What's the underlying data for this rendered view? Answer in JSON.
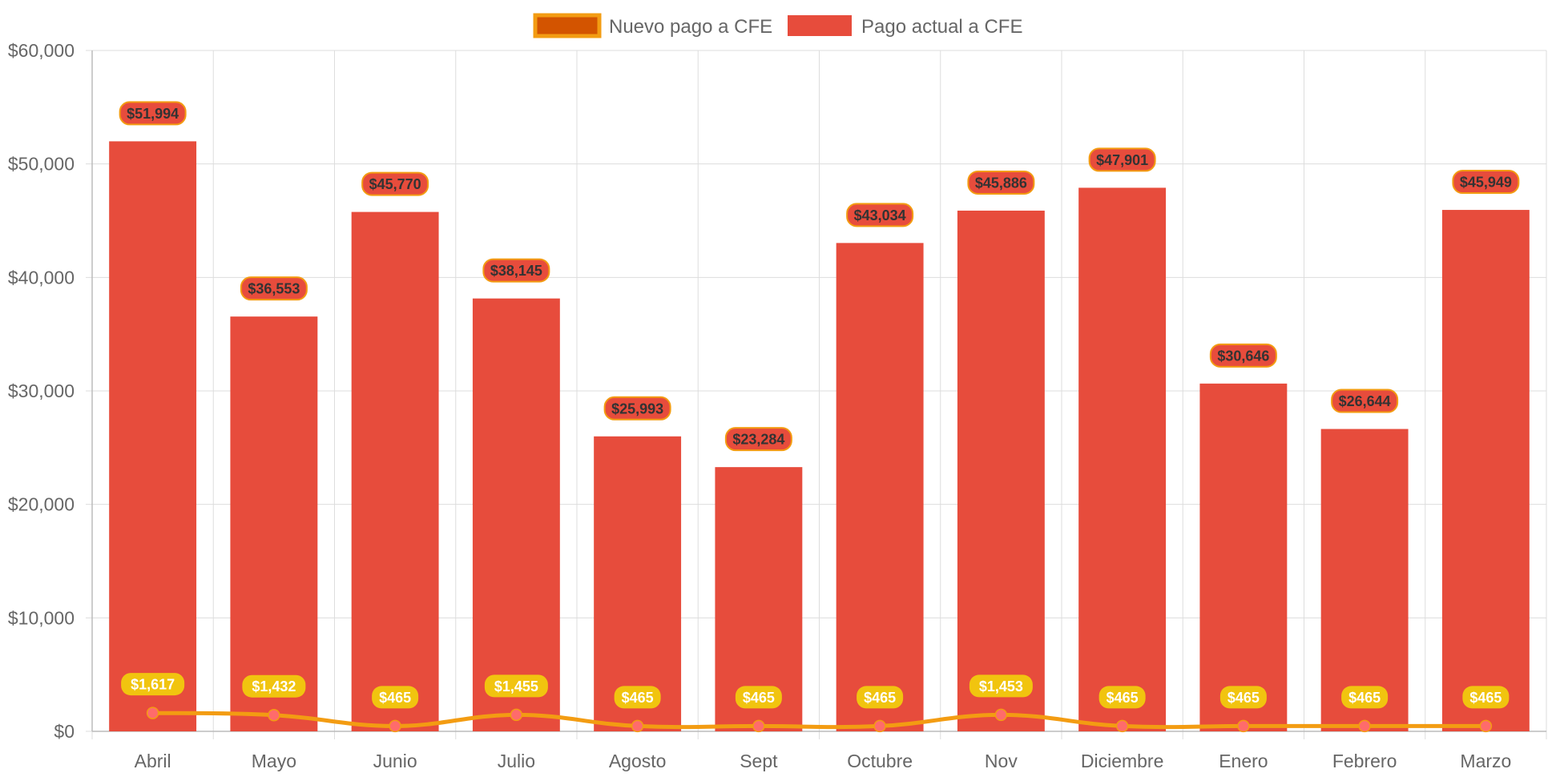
{
  "colors": {
    "bar_fill": "#e74c3c",
    "line_stroke": "#f39c12",
    "line_legend_fill": "#d35400",
    "point_fill": "#ff6b6b",
    "line_label_bg": "#f1c40f",
    "grid": "#dddddd",
    "text": "#666666"
  },
  "chart_data": {
    "type": "bar",
    "title": "",
    "xlabel": "",
    "ylabel": "",
    "ylim": [
      0,
      60000
    ],
    "y_ticks": [
      0,
      10000,
      20000,
      30000,
      40000,
      50000,
      60000
    ],
    "y_tick_labels": [
      "$0",
      "$10,000",
      "$20,000",
      "$30,000",
      "$40,000",
      "$50,000",
      "$60,000"
    ],
    "categories": [
      "Abril",
      "Mayo",
      "Junio",
      "Julio",
      "Agosto",
      "Sept",
      "Octubre",
      "Nov",
      "Diciembre",
      "Enero",
      "Febrero",
      "Marzo"
    ],
    "legend_position": "top-center",
    "grid": true,
    "series": [
      {
        "name": "Nuevo pago a CFE",
        "type": "line",
        "values": [
          1617,
          1432,
          465,
          1455,
          465,
          465,
          465,
          1453,
          465,
          465,
          465,
          465
        ],
        "labels": [
          "$1,617",
          "$1,432",
          "$465",
          "$1,455",
          "$465",
          "$465",
          "$465",
          "$1,453",
          "$465",
          "$465",
          "$465",
          "$465"
        ]
      },
      {
        "name": "Pago actual a CFE",
        "type": "bar",
        "values": [
          51994,
          36553,
          45770,
          38145,
          25993,
          23284,
          43034,
          45886,
          47901,
          30646,
          26644,
          45949
        ],
        "labels": [
          "$51,994",
          "$36,553",
          "$45,770",
          "$38,145",
          "$25,993",
          "$23,284",
          "$43,034",
          "$45,886",
          "$47,901",
          "$30,646",
          "$26,644",
          "$45,949"
        ]
      }
    ]
  }
}
